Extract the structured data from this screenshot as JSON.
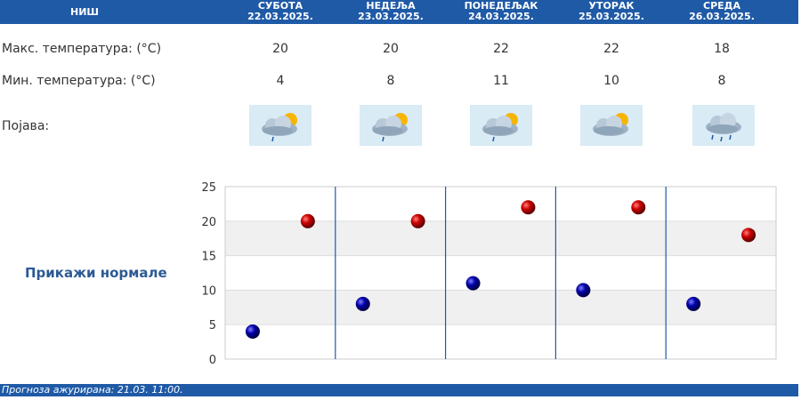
{
  "header": {
    "city": "НИШ",
    "days": [
      {
        "name": "СУБОТА",
        "date": "22.03.2025."
      },
      {
        "name": "НЕДЕЉА",
        "date": "23.03.2025."
      },
      {
        "name": "ПОНЕДЕЉАК",
        "date": "24.03.2025."
      },
      {
        "name": "УТОРАК",
        "date": "25.03.2025."
      },
      {
        "name": "СРЕДА",
        "date": "26.03.2025."
      }
    ]
  },
  "rows": {
    "max_label": "Макс. температура: (°C)",
    "min_label": "Мин. температура: (°C)",
    "phenomenon_label": "Појава:",
    "max_values": [
      "20",
      "20",
      "22",
      "22",
      "18"
    ],
    "min_values": [
      "4",
      "8",
      "11",
      "10",
      "8"
    ],
    "icons": [
      "partly-cloudy-light-rain-icon",
      "partly-cloudy-light-rain-icon",
      "partly-cloudy-light-rain-icon",
      "partly-cloudy-icon",
      "cloud-rain-icon"
    ]
  },
  "normals_link": "Прикажи нормале",
  "footer": {
    "updated": "Прогноза ажурирана:  21.03.  11:00."
  },
  "colors": {
    "header_bg": "#1f5aa6",
    "max_marker": "#cc0000",
    "min_marker": "#0000aa",
    "link": "#2c5a94"
  },
  "chart_data": {
    "type": "scatter",
    "categories": [
      "СУБОТА",
      "НЕДЕЉА",
      "ПОНЕДЕЉАК",
      "УТОРАК",
      "СРЕДА"
    ],
    "series": [
      {
        "values": [
          4,
          8,
          11,
          10,
          8
        ]
      },
      {
        "values": [
          20,
          20,
          22,
          22,
          18
        ]
      }
    ],
    "ylim": [
      0,
      25
    ],
    "yticks": [
      0,
      5,
      10,
      15,
      20,
      25
    ],
    "grid": true,
    "xlabel": "",
    "ylabel": ""
  }
}
